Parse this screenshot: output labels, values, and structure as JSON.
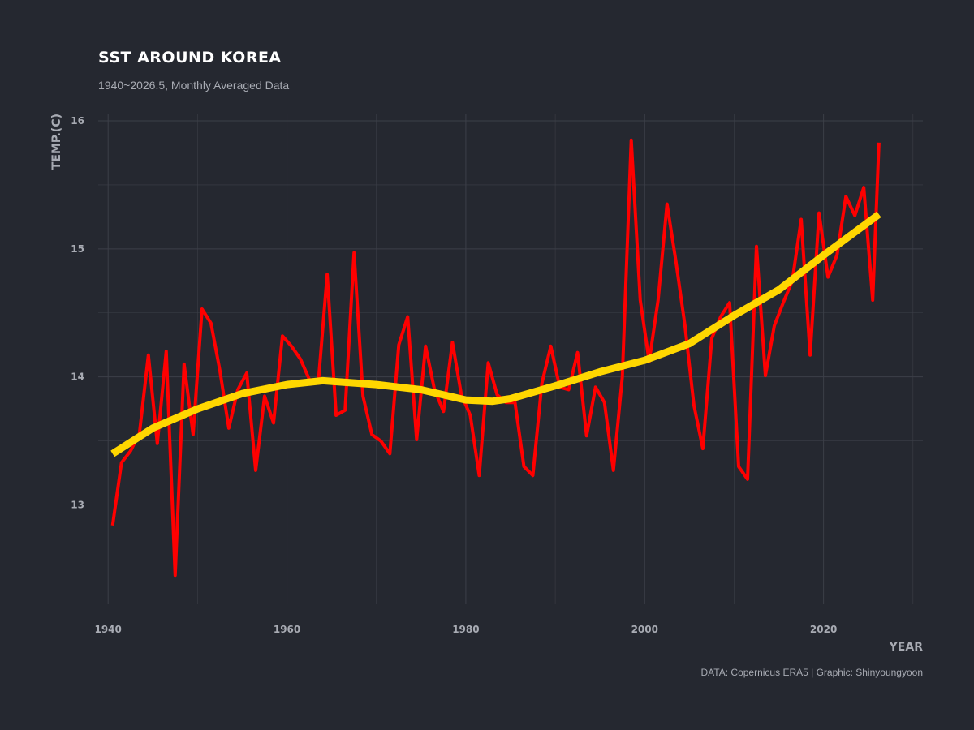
{
  "header": {
    "title": "SST AROUND KOREA",
    "subtitle": "1940~2026.5, Monthly Averaged Data"
  },
  "caption": "DATA: Copernicus ERA5 | Graphic: Shinyoungyoon",
  "colors": {
    "background": "#252830",
    "grid": "#3c3f48",
    "raw_line": "#ff0000",
    "trend_line": "#ffd700",
    "text": "#a8abb3",
    "title": "#ffffff"
  },
  "chart_data": {
    "type": "line",
    "title": "SST AROUND KOREA",
    "subtitle": "1940~2026.5, Monthly Averaged Data",
    "xlabel": "YEAR",
    "ylabel": "TEMP.(C)",
    "xlim": [
      1940,
      2030
    ],
    "ylim": [
      12.3,
      16.0
    ],
    "x_ticks": [
      1940,
      1960,
      1980,
      2000,
      2020
    ],
    "y_ticks": [
      13,
      14,
      15,
      16
    ],
    "grid": true,
    "legend": "none",
    "series": [
      {
        "style": "thin-red",
        "x": [
          1940.5,
          1941.5,
          1942.5,
          1943.5,
          1944.5,
          1945.5,
          1946.5,
          1947.5,
          1948.5,
          1949.5,
          1950.5,
          1951.5,
          1952.5,
          1953.5,
          1954.5,
          1955.5,
          1956.5,
          1957.5,
          1958.5,
          1959.5,
          1960.5,
          1961.5,
          1962.5,
          1963.5,
          1964.5,
          1965.5,
          1966.5,
          1967.5,
          1968.5,
          1969.5,
          1970.5,
          1971.5,
          1972.5,
          1973.5,
          1974.5,
          1975.5,
          1976.5,
          1977.5,
          1978.5,
          1979.5,
          1980.5,
          1981.5,
          1982.5,
          1983.5,
          1984.5,
          1985.5,
          1986.5,
          1987.5,
          1988.5,
          1989.5,
          1990.5,
          1991.5,
          1992.5,
          1993.5,
          1994.5,
          1995.5,
          1996.5,
          1997.5,
          1998.5,
          1999.5,
          2000.5,
          2001.5,
          2002.5,
          2003.5,
          2004.5,
          2005.5,
          2006.5,
          2007.5,
          2008.5,
          2009.5,
          2010.5,
          2011.5,
          2012.5,
          2013.5,
          2014.5,
          2015.5,
          2016.5,
          2017.5,
          2018.5,
          2019.5,
          2020.5,
          2021.5,
          2022.5,
          2023.5,
          2024.5,
          2025.5,
          2026.2
        ],
        "values": [
          12.84,
          13.33,
          13.42,
          13.56,
          14.17,
          13.48,
          14.2,
          12.45,
          14.1,
          13.55,
          14.53,
          14.42,
          14.05,
          13.6,
          13.9,
          14.03,
          13.27,
          13.85,
          13.64,
          14.32,
          14.24,
          14.14,
          13.98,
          13.95,
          14.8,
          13.7,
          13.74,
          14.97,
          13.85,
          13.55,
          13.5,
          13.4,
          14.25,
          14.47,
          13.51,
          14.24,
          13.9,
          13.73,
          14.27,
          13.86,
          13.7,
          13.23,
          14.11,
          13.86,
          13.8,
          13.8,
          13.3,
          13.23,
          13.95,
          14.24,
          13.92,
          13.9,
          14.19,
          13.54,
          13.92,
          13.8,
          13.27,
          14.0,
          15.85,
          14.6,
          14.12,
          14.6,
          15.35,
          14.9,
          14.4,
          13.78,
          13.44,
          14.3,
          14.47,
          14.58,
          13.3,
          13.2,
          15.02,
          14.01,
          14.4,
          14.58,
          14.75,
          15.23,
          14.17,
          15.28,
          14.78,
          14.95,
          15.41,
          15.26,
          15.48,
          14.6,
          15.83
        ]
      },
      {
        "style": "thick-yellow",
        "x": [
          1940.5,
          1945,
          1950,
          1955,
          1960,
          1964,
          1970,
          1975,
          1980,
          1983,
          1985,
          1990,
          1995,
          2000,
          2005,
          2010,
          2015,
          2020,
          2026.2
        ],
        "values": [
          13.4,
          13.6,
          13.75,
          13.87,
          13.94,
          13.97,
          13.94,
          13.9,
          13.82,
          13.81,
          13.83,
          13.93,
          14.04,
          14.13,
          14.26,
          14.48,
          14.68,
          14.95,
          15.27
        ]
      }
    ]
  }
}
